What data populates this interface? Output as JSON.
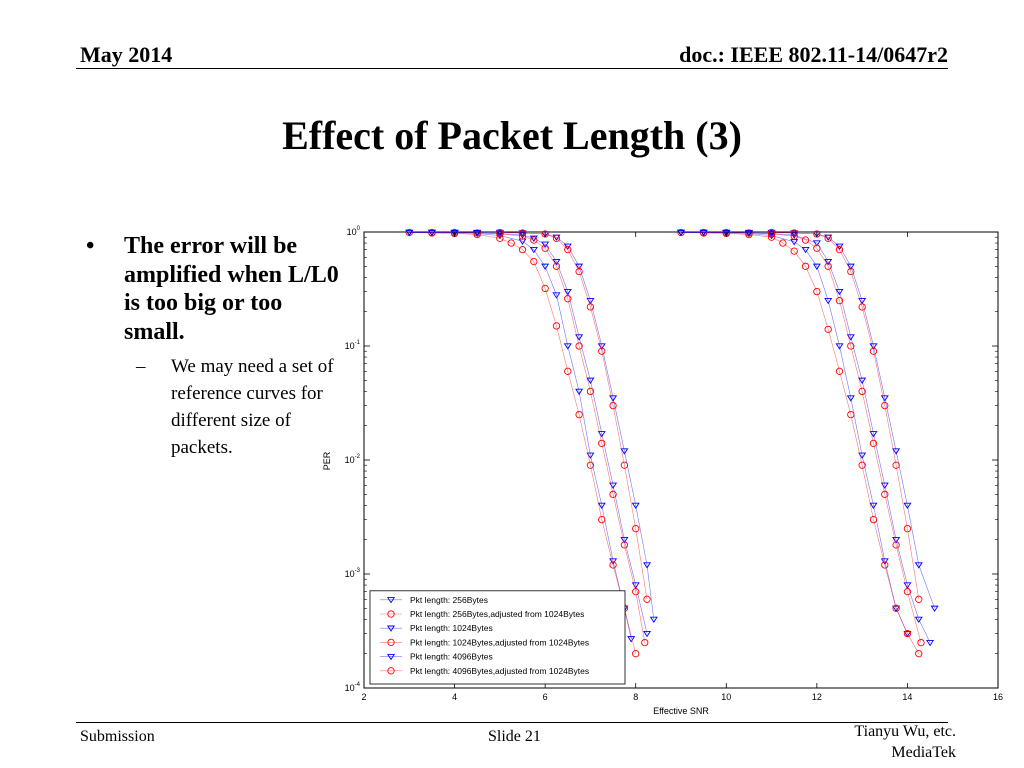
{
  "header": {
    "date": "May 2014",
    "doc": "doc.: IEEE 802.11-14/0647r2"
  },
  "slide": {
    "title": "Effect of Packet Length (3)",
    "bullet1": "The error will be amplified when L/L0 is too big or too small.",
    "bullet2": "We may need a set of reference curves for different size of packets.",
    "bullet1_marker": "•",
    "bullet2_marker": "–"
  },
  "footer": {
    "left": "Submission",
    "center": "Slide 21",
    "right_line1": "Tianyu Wu, etc.",
    "right_line2": "MediaTek"
  },
  "chart_data": {
    "type": "line",
    "xlabel": "Effective SNR",
    "ylabel": "PER",
    "xlim": [
      2,
      16
    ],
    "ylim": [
      0.0001,
      1
    ],
    "yscale": "log",
    "xticks": [
      2,
      4,
      6,
      8,
      10,
      12,
      14,
      16
    ],
    "yticks": [
      1,
      0.1,
      0.01,
      0.001,
      0.0001
    ],
    "ytick_labels": [
      {
        "base": "10",
        "exp": "0"
      },
      {
        "base": "10",
        "exp": "-1"
      },
      {
        "base": "10",
        "exp": "-2"
      },
      {
        "base": "10",
        "exp": "-3"
      },
      {
        "base": "10",
        "exp": "-4"
      }
    ],
    "legend_position": "bottom-left",
    "series": [
      {
        "name": "Pkt length: 256Bytes",
        "color": "#0000ff",
        "marker": "triangle-down",
        "x": [
          3.0,
          3.5,
          4.0,
          4.5,
          5.0,
          5.5,
          5.75,
          6.0,
          6.25,
          6.5,
          6.75,
          7.0,
          7.25,
          7.5,
          7.75,
          7.9
        ],
        "y": [
          0.99,
          0.99,
          0.98,
          0.97,
          0.93,
          0.83,
          0.7,
          0.5,
          0.28,
          0.1,
          0.04,
          0.011,
          0.004,
          0.0013,
          0.0005,
          0.00027
        ]
      },
      {
        "name": "Pkt length: 256Bytes,adjusted from 1024Bytes",
        "color": "#ff0000",
        "marker": "circle",
        "x": [
          3.0,
          3.5,
          4.0,
          4.5,
          5.0,
          5.25,
          5.5,
          5.75,
          6.0,
          6.25,
          6.5,
          6.75,
          7.0,
          7.25,
          7.5,
          7.75,
          8.0
        ],
        "y": [
          0.99,
          0.98,
          0.97,
          0.95,
          0.88,
          0.8,
          0.7,
          0.55,
          0.32,
          0.15,
          0.06,
          0.025,
          0.009,
          0.003,
          0.0012,
          0.0005,
          0.0002
        ]
      },
      {
        "name": "Pkt length: 1024Bytes",
        "color": "#0000ff",
        "marker": "triangle-down",
        "x": [
          3.0,
          3.5,
          4.0,
          4.5,
          5.0,
          5.5,
          5.75,
          6.0,
          6.25,
          6.5,
          6.75,
          7.0,
          7.25,
          7.5,
          7.75,
          8.0,
          8.25
        ],
        "y": [
          0.99,
          0.99,
          0.99,
          0.98,
          0.97,
          0.94,
          0.88,
          0.78,
          0.55,
          0.3,
          0.12,
          0.05,
          0.017,
          0.006,
          0.002,
          0.0008,
          0.0003
        ]
      },
      {
        "name": "Pkt length: 1024Bytes,adjusted from 1024Bytes",
        "color": "#ff0000",
        "marker": "circle",
        "x": [
          3.5,
          4.0,
          4.5,
          5.0,
          5.5,
          5.75,
          6.0,
          6.25,
          6.5,
          6.75,
          7.0,
          7.25,
          7.5,
          7.75,
          8.0,
          8.2
        ],
        "y": [
          0.99,
          0.99,
          0.98,
          0.96,
          0.92,
          0.85,
          0.72,
          0.5,
          0.26,
          0.1,
          0.04,
          0.014,
          0.005,
          0.0018,
          0.0007,
          0.00025
        ]
      },
      {
        "name": "Pkt length: 4096Bytes",
        "color": "#0000ff",
        "marker": "triangle-down",
        "x": [
          3.0,
          3.5,
          4.0,
          4.5,
          5.0,
          5.5,
          6.0,
          6.25,
          6.5,
          6.75,
          7.0,
          7.25,
          7.5,
          7.75,
          8.0,
          8.25,
          8.4
        ],
        "y": [
          0.99,
          0.99,
          0.99,
          0.99,
          0.99,
          0.98,
          0.96,
          0.9,
          0.75,
          0.5,
          0.25,
          0.1,
          0.035,
          0.012,
          0.004,
          0.0012,
          0.0004
        ]
      },
      {
        "name": "Pkt length: 4096Bytes,adjusted from 1024Bytes",
        "color": "#ff0000",
        "marker": "circle",
        "x": [
          5.0,
          5.5,
          6.0,
          6.25,
          6.5,
          6.75,
          7.0,
          7.25,
          7.5,
          7.75,
          8.0,
          8.25
        ],
        "y": [
          0.99,
          0.98,
          0.96,
          0.88,
          0.7,
          0.45,
          0.22,
          0.09,
          0.03,
          0.009,
          0.0025,
          0.0006
        ]
      },
      {
        "name": "",
        "color": "#0000ff",
        "marker": "triangle-down",
        "x": [
          9.0,
          9.5,
          10.0,
          10.5,
          11.0,
          11.5,
          11.75,
          12.0,
          12.25,
          12.5,
          12.75,
          13.0,
          13.25,
          13.5,
          13.75,
          14.0
        ],
        "y": [
          0.99,
          0.99,
          0.98,
          0.97,
          0.93,
          0.82,
          0.7,
          0.5,
          0.25,
          0.1,
          0.035,
          0.011,
          0.004,
          0.0013,
          0.0005,
          0.0003
        ]
      },
      {
        "name": "",
        "color": "#ff0000",
        "marker": "circle",
        "x": [
          9.0,
          9.5,
          10.0,
          10.5,
          11.0,
          11.25,
          11.5,
          11.75,
          12.0,
          12.25,
          12.5,
          12.75,
          13.0,
          13.25,
          13.5,
          13.75,
          14.0,
          14.25
        ],
        "y": [
          0.99,
          0.98,
          0.97,
          0.95,
          0.9,
          0.8,
          0.68,
          0.5,
          0.3,
          0.14,
          0.06,
          0.025,
          0.009,
          0.003,
          0.0012,
          0.0005,
          0.0003,
          0.0002
        ]
      },
      {
        "name": "",
        "color": "#0000ff",
        "marker": "triangle-down",
        "x": [
          9.0,
          9.5,
          10.0,
          10.5,
          11.0,
          11.5,
          12.0,
          12.25,
          12.5,
          12.75,
          13.0,
          13.25,
          13.5,
          13.75,
          14.0,
          14.25,
          14.5
        ],
        "y": [
          0.99,
          0.99,
          0.99,
          0.98,
          0.97,
          0.94,
          0.8,
          0.55,
          0.3,
          0.12,
          0.05,
          0.017,
          0.006,
          0.002,
          0.0008,
          0.0004,
          0.00025
        ]
      },
      {
        "name": "",
        "color": "#ff0000",
        "marker": "circle",
        "x": [
          9.5,
          10.0,
          10.5,
          11.0,
          11.5,
          11.75,
          12.0,
          12.25,
          12.5,
          12.75,
          13.0,
          13.25,
          13.5,
          13.75,
          14.0,
          14.3
        ],
        "y": [
          0.99,
          0.99,
          0.98,
          0.96,
          0.92,
          0.85,
          0.72,
          0.5,
          0.25,
          0.1,
          0.04,
          0.014,
          0.005,
          0.0018,
          0.0007,
          0.00025
        ]
      },
      {
        "name": "",
        "color": "#0000ff",
        "marker": "triangle-down",
        "x": [
          9.0,
          9.5,
          10.0,
          10.5,
          11.0,
          11.5,
          12.0,
          12.25,
          12.5,
          12.75,
          13.0,
          13.25,
          13.5,
          13.75,
          14.0,
          14.25,
          14.6
        ],
        "y": [
          0.99,
          0.99,
          0.99,
          0.99,
          0.99,
          0.98,
          0.96,
          0.9,
          0.75,
          0.5,
          0.25,
          0.1,
          0.035,
          0.012,
          0.004,
          0.0012,
          0.0005
        ]
      },
      {
        "name": "",
        "color": "#ff0000",
        "marker": "circle",
        "x": [
          11.0,
          11.5,
          12.0,
          12.25,
          12.5,
          12.75,
          13.0,
          13.25,
          13.5,
          13.75,
          14.0,
          14.25
        ],
        "y": [
          0.99,
          0.98,
          0.96,
          0.88,
          0.7,
          0.45,
          0.22,
          0.09,
          0.03,
          0.009,
          0.0025,
          0.0006
        ]
      }
    ]
  }
}
